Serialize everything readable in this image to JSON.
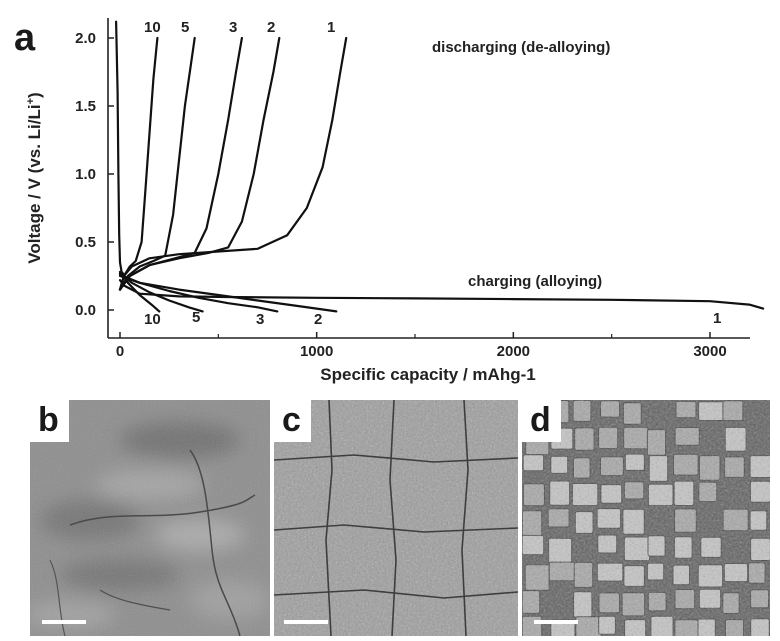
{
  "chart_data": {
    "type": "line",
    "panel_label": "a",
    "xlabel": "Specific capacity / mAhg-1",
    "ylabel": "Voltage / V (vs. Li/Li+)",
    "ylabel_main": "Voltage / V (vs. Li/Li",
    "ylabel_sup": "+",
    "ylabel_end": ")",
    "xlim": [
      -100,
      3520
    ],
    "ylim": [
      -0.1,
      2.15
    ],
    "xticks": [
      0,
      1000,
      2000,
      3000
    ],
    "xtick_labels": [
      "0",
      "1000",
      "2000",
      "3000"
    ],
    "yticks": [
      0.0,
      0.5,
      1.0,
      1.5,
      2.0
    ],
    "ytick_labels": [
      "0.0",
      "0.5",
      "1.0",
      "1.5",
      "2.0"
    ],
    "grid": false,
    "annotations": [
      "discharging (de-alloying)",
      "charging (alloying)"
    ],
    "discharge_labels": [
      "10",
      "5",
      "3",
      "2",
      "1"
    ],
    "charge_labels": [
      "10",
      "5",
      "3",
      "2",
      "1"
    ],
    "series": [
      {
        "cycle": "1",
        "process": "charging",
        "x": [
          0,
          20,
          100,
          300,
          600,
          1000,
          1500,
          2000,
          2500,
          3000,
          3200,
          3270
        ],
        "y": [
          0.22,
          0.18,
          0.12,
          0.1,
          0.095,
          0.09,
          0.085,
          0.08,
          0.075,
          0.065,
          0.04,
          0.01
        ]
      },
      {
        "cycle": "1",
        "process": "discharging",
        "x": [
          0,
          20,
          60,
          150,
          300,
          500,
          700,
          850,
          950,
          1030,
          1080,
          1120,
          1150
        ],
        "y": [
          0.15,
          0.25,
          0.32,
          0.38,
          0.41,
          0.43,
          0.45,
          0.55,
          0.75,
          1.05,
          1.4,
          1.75,
          2.0
        ]
      },
      {
        "cycle": "2",
        "process": "charging",
        "x": [
          0,
          100,
          300,
          500,
          700,
          900,
          1100
        ],
        "y": [
          0.25,
          0.2,
          0.15,
          0.11,
          0.07,
          0.03,
          -0.01
        ]
      },
      {
        "cycle": "2",
        "process": "discharging",
        "x": [
          0,
          50,
          150,
          300,
          450,
          550,
          620,
          680,
          730,
          780,
          810
        ],
        "y": [
          0.15,
          0.25,
          0.33,
          0.38,
          0.42,
          0.46,
          0.65,
          1.0,
          1.4,
          1.75,
          2.0
        ]
      },
      {
        "cycle": "3",
        "process": "charging",
        "x": [
          0,
          100,
          250,
          400,
          550,
          700,
          800
        ],
        "y": [
          0.26,
          0.2,
          0.14,
          0.09,
          0.05,
          0.02,
          -0.01
        ]
      },
      {
        "cycle": "3",
        "process": "discharging",
        "x": [
          0,
          50,
          150,
          280,
          380,
          440,
          500,
          550,
          590,
          620
        ],
        "y": [
          0.15,
          0.25,
          0.33,
          0.38,
          0.42,
          0.6,
          1.0,
          1.4,
          1.75,
          2.0
        ]
      },
      {
        "cycle": "5",
        "process": "charging",
        "x": [
          0,
          60,
          150,
          250,
          350,
          420
        ],
        "y": [
          0.27,
          0.2,
          0.13,
          0.07,
          0.02,
          -0.01
        ]
      },
      {
        "cycle": "5",
        "process": "discharging",
        "x": [
          0,
          40,
          100,
          170,
          230,
          270,
          300,
          330,
          360,
          380
        ],
        "y": [
          0.15,
          0.25,
          0.32,
          0.36,
          0.4,
          0.7,
          1.1,
          1.5,
          1.8,
          2.0
        ]
      },
      {
        "cycle": "10",
        "process": "charging",
        "x": [
          0,
          40,
          100,
          160,
          200
        ],
        "y": [
          0.28,
          0.2,
          0.11,
          0.04,
          -0.01
        ]
      },
      {
        "cycle": "10",
        "process": "discharging",
        "x": [
          0,
          20,
          50,
          80,
          110,
          130,
          150,
          170,
          190
        ],
        "y": [
          0.15,
          0.25,
          0.32,
          0.36,
          0.5,
          0.9,
          1.3,
          1.7,
          2.0
        ]
      },
      {
        "cycle": "initial",
        "process": "voltage-rise",
        "x": [
          -20,
          -12,
          -8,
          -4,
          0,
          8,
          20
        ],
        "y": [
          2.12,
          1.6,
          1.0,
          0.55,
          0.35,
          0.28,
          0.26
        ]
      }
    ]
  },
  "sem_panels": [
    {
      "label": "b",
      "scale_bar": true
    },
    {
      "label": "c",
      "scale_bar": true
    },
    {
      "label": "d",
      "scale_bar": true
    }
  ]
}
